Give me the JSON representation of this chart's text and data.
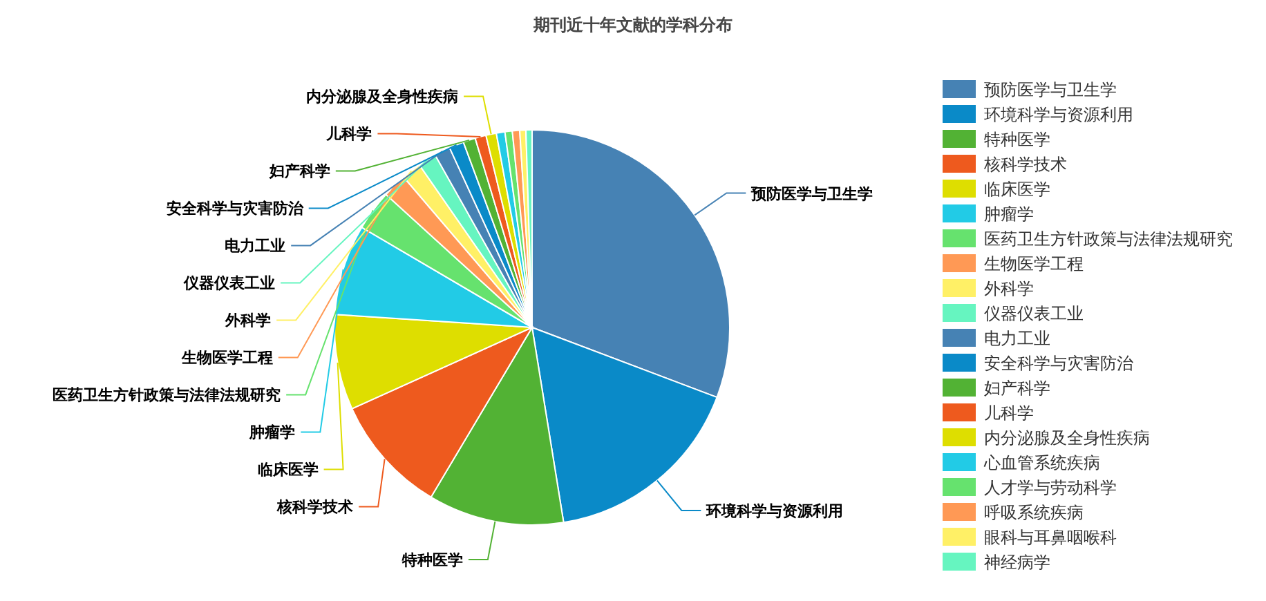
{
  "chart_data": {
    "type": "pie",
    "title": "期刊近十年文献的学科分布",
    "categories": [
      "预防医学与卫生学",
      "环境科学与资源利用",
      "特种医学",
      "核科学技术",
      "临床医学",
      "肿瘤学",
      "医药卫生方针政策与法律法规研究",
      "生物医学工程",
      "外科学",
      "仪器仪表工业",
      "电力工业",
      "安全科学与灾害防治",
      "妇产科学",
      "儿科学",
      "内分泌腺及全身性疾病",
      "心血管系统疾病",
      "人才学与劳动科学",
      "呼吸系统疾病",
      "眼科与耳鼻咽喉科",
      "神经病学"
    ],
    "values": [
      30.75,
      16.7,
      11.1,
      9.7,
      7.8,
      7.4,
      3.3,
      2.0,
      1.6,
      1.5,
      1.3,
      1.2,
      1.0,
      0.9,
      0.85,
      0.7,
      0.6,
      0.6,
      0.5,
      0.5
    ],
    "colors": [
      "#4682b4",
      "#0a8ac8",
      "#52b234",
      "#ee5a1e",
      "#dede00",
      "#22cbe6",
      "#66e26e",
      "#ff9955",
      "#fff066",
      "#66f5c0",
      "#4682b4",
      "#0a8ac8",
      "#52b234",
      "#ee5a1e",
      "#dede00",
      "#22cbe6",
      "#66e26e",
      "#ff9955",
      "#fff066",
      "#66f5c0"
    ],
    "legend": "right"
  }
}
